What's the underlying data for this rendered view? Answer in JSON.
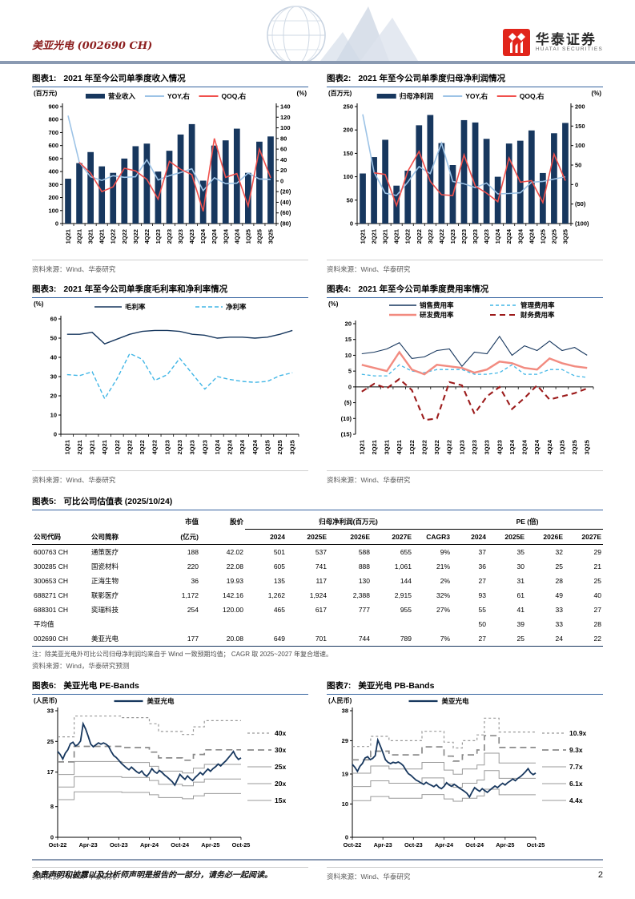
{
  "header": {
    "brand": "美亚光电 (002690 CH)",
    "logo_cn": "华泰证券",
    "logo_en": "HUATAI SECURITIES"
  },
  "footer": {
    "disclaimer": "免责声明和披露以及分析师声明是报告的一部分，请务必一起阅读。",
    "page": "2"
  },
  "colors": {
    "navy": "#17375e",
    "light_blue": "#9dc3e6",
    "red": "#f0504c",
    "cyan": "#41b6e6",
    "salmon": "#f28b80",
    "dark_red": "#9c1b1b",
    "band_gray": "#9a9a9a",
    "rule_slate": "#8a9ab2",
    "title_line": "#35639f",
    "brand_red": "#8c1f1f",
    "logo_red": "#e1251b"
  },
  "figures": {
    "fig1": {
      "label": "图表1:",
      "source": "资料来源：Wind、华泰研究"
    },
    "fig2": {
      "label": "图表2:",
      "source": "资料来源：Wind、华泰研究"
    },
    "fig3": {
      "label": "图表3:",
      "source": "资料来源：Wind、华泰研究"
    },
    "fig4": {
      "label": "图表4:",
      "source": "资料来源：Wind、华泰研究"
    },
    "fig6": {
      "label": "图表6:",
      "source": "资料来源：Wind、华泰研究"
    },
    "fig7": {
      "label": "图表7:",
      "source": "资料来源：Wind、华泰研究"
    }
  },
  "valuation_table": {
    "label": "图表5:",
    "title": "可比公司估值表 (2025/10/24)",
    "group_headers": {
      "mktcap": "市值",
      "price": "股价",
      "profit": "归母净利润(百万元)",
      "pe": "PE (倍)"
    },
    "col_headers": [
      "公司代码",
      "公司简称",
      "(亿元)",
      "",
      "2024",
      "2025E",
      "2026E",
      "2027E",
      "CAGR3",
      "2024",
      "2025E",
      "2026E",
      "2027E"
    ],
    "rows": [
      [
        "600763 CH",
        "通策医疗",
        "188",
        "42.02",
        "501",
        "537",
        "588",
        "655",
        "9%",
        "37",
        "35",
        "32",
        "29"
      ],
      [
        "300285 CH",
        "国瓷材料",
        "220",
        "22.08",
        "605",
        "741",
        "888",
        "1,061",
        "21%",
        "36",
        "30",
        "25",
        "21"
      ],
      [
        "300653 CH",
        "正海生物",
        "36",
        "19.93",
        "135",
        "117",
        "130",
        "144",
        "2%",
        "27",
        "31",
        "28",
        "25"
      ],
      [
        "688271 CH",
        "联影医疗",
        "1,172",
        "142.16",
        "1,262",
        "1,924",
        "2,388",
        "2,915",
        "32%",
        "93",
        "61",
        "49",
        "40"
      ],
      [
        "688301 CH",
        "奕瑞科技",
        "254",
        "120.00",
        "465",
        "617",
        "777",
        "955",
        "27%",
        "55",
        "41",
        "33",
        "27"
      ],
      [
        "平均值",
        "",
        "",
        "",
        "",
        "",
        "",
        "",
        "",
        "50",
        "39",
        "33",
        "28"
      ],
      [
        "002690 CH",
        "美亚光电",
        "177",
        "20.08",
        "649",
        "701",
        "744",
        "789",
        "7%",
        "27",
        "25",
        "24",
        "22"
      ]
    ],
    "note": "注：除美亚光电外可比公司归母净利润均来自于 Wind 一致预期均值； CAGR 取 2025~2027 年复合增速。",
    "source": "资料来源：Wind，华泰研究预测"
  },
  "chart_data": [
    {
      "id": "chart1",
      "type": "bar+line",
      "title": "2021 年至今公司单季度收入情况",
      "unit_left": "(百万元)",
      "unit_right": "(%)",
      "categories": [
        "1Q21",
        "2Q21",
        "3Q21",
        "4Q21",
        "1Q22",
        "2Q22",
        "3Q22",
        "4Q22",
        "1Q23",
        "2Q23",
        "3Q23",
        "4Q23",
        "1Q24",
        "2Q24",
        "3Q24",
        "4Q24",
        "1Q25",
        "2Q25",
        "3Q25"
      ],
      "bar": {
        "name": "营业收入",
        "color": "#17375e",
        "values": [
          345,
          465,
          550,
          440,
          390,
          500,
          595,
          615,
          400,
          560,
          685,
          765,
          330,
          600,
          640,
          730,
          390,
          630,
          670
        ]
      },
      "lines": [
        {
          "name": "YOY,右",
          "color": "#9dc3e6",
          "values": [
            123,
            35,
            8,
            1,
            10,
            7,
            8,
            40,
            2,
            10,
            16,
            23,
            -18,
            6,
            -5,
            -4,
            15,
            4,
            3
          ]
        },
        {
          "name": "QOQ,右",
          "color": "#f0504c",
          "values": [
            null,
            35,
            15,
            -20,
            -11,
            24,
            19,
            3,
            -34,
            37,
            22,
            12,
            -57,
            80,
            7,
            14,
            -47,
            60,
            6
          ]
        }
      ],
      "left_ticks": [
        0,
        100,
        200,
        300,
        400,
        500,
        600,
        700,
        800,
        900
      ],
      "right_ticks": [
        -80,
        -60,
        -40,
        -20,
        0,
        20,
        40,
        60,
        80,
        100,
        120,
        140
      ]
    },
    {
      "id": "chart2",
      "type": "bar+line",
      "title": "2021 年至今公司单季度归母净利润情况",
      "unit_left": "(百万元)",
      "unit_right": "(%)",
      "categories": [
        "1Q21",
        "2Q21",
        "3Q21",
        "4Q21",
        "1Q22",
        "2Q22",
        "3Q22",
        "4Q22",
        "1Q23",
        "2Q23",
        "3Q23",
        "4Q23",
        "1Q24",
        "2Q24",
        "3Q24",
        "4Q24",
        "1Q25",
        "2Q25",
        "3Q25"
      ],
      "bar": {
        "name": "归母净利润",
        "color": "#17375e",
        "values": [
          107,
          142,
          179,
          81,
          113,
          210,
          232,
          172,
          125,
          221,
          216,
          181,
          100,
          171,
          177,
          199,
          108,
          193,
          215
        ]
      },
      "lines": [
        {
          "name": "YOY,右",
          "color": "#9dc3e6",
          "values": [
            180,
            32,
            -22,
            -28,
            6,
            46,
            28,
            106,
            8,
            2,
            -8,
            4,
            -24,
            -23,
            -21,
            6,
            8,
            14,
            20
          ]
        },
        {
          "name": "QOQ,右",
          "color": "#f0504c",
          "values": [
            null,
            30,
            26,
            -54,
            34,
            85,
            8,
            -26,
            -28,
            76,
            -4,
            -22,
            -44,
            68,
            6,
            10,
            -46,
            78,
            10
          ]
        }
      ],
      "left_ticks": [
        0,
        50,
        100,
        150,
        200,
        250
      ],
      "right_ticks": [
        -100,
        -50,
        0,
        50,
        100,
        150,
        200
      ]
    },
    {
      "id": "chart3",
      "type": "line",
      "title": "2021 年至今公司单季度毛利率和净利率情况",
      "unit_left": "(%)",
      "legend_rows": 1,
      "zero_line": false,
      "categories": [
        "1Q21",
        "2Q21",
        "3Q21",
        "4Q21",
        "1Q22",
        "2Q22",
        "3Q22",
        "4Q22",
        "1Q23",
        "2Q23",
        "3Q23",
        "4Q23",
        "1Q24",
        "2Q24",
        "3Q24",
        "4Q24",
        "1Q25",
        "2Q25",
        "3Q25"
      ],
      "series": [
        {
          "name": "毛利率",
          "color": "#17375e",
          "width": 1.4,
          "dash": "",
          "values": [
            52,
            52,
            53,
            47,
            49.5,
            52,
            53.5,
            54,
            54,
            53.5,
            52,
            51.5,
            50,
            50.5,
            50.5,
            50,
            50.5,
            52,
            54
          ]
        },
        {
          "name": "净利率",
          "color": "#41b6e6",
          "width": 1.4,
          "dash": "5,3",
          "values": [
            31,
            30.5,
            32.5,
            18.5,
            29,
            42,
            39,
            28,
            31,
            39.5,
            31.5,
            23.5,
            30,
            28.5,
            27.5,
            27,
            27.5,
            30.5,
            32
          ]
        }
      ],
      "ticks": [
        0,
        10,
        20,
        30,
        40,
        50,
        60
      ]
    },
    {
      "id": "chart4",
      "type": "line",
      "title": "2021 年至今公司单季度费用率情况",
      "unit_left": "(%)",
      "legend_rows": 2,
      "zero_line": true,
      "categories": [
        "1Q21",
        "2Q21",
        "3Q21",
        "4Q21",
        "1Q22",
        "2Q22",
        "3Q22",
        "4Q22",
        "1Q23",
        "2Q23",
        "3Q23",
        "4Q23",
        "1Q24",
        "2Q24",
        "3Q24",
        "4Q24",
        "1Q25",
        "2Q25",
        "3Q25"
      ],
      "series": [
        {
          "name": "销售费用率",
          "color": "#17375e",
          "width": 1.1,
          "dash": "",
          "values": [
            10.5,
            11,
            12,
            14,
            9,
            9.5,
            11.5,
            12,
            6.5,
            11,
            10.5,
            16,
            10,
            13,
            11.5,
            14.5,
            11.5,
            12.5,
            10
          ]
        },
        {
          "name": "管理费用率",
          "color": "#41b6e6",
          "width": 1.3,
          "dash": "4,3",
          "values": [
            4,
            3.5,
            3.5,
            7,
            5,
            4.5,
            5.5,
            5.5,
            5.5,
            4,
            4,
            4.5,
            7,
            4,
            4,
            5.5,
            5.5,
            3.5,
            3
          ]
        },
        {
          "name": "研发费用率",
          "color": "#f28b80",
          "width": 2.4,
          "dash": "",
          "values": [
            7,
            6,
            5,
            11,
            5.5,
            4,
            7,
            6.5,
            6,
            4.5,
            5.5,
            8,
            7.5,
            6,
            5.5,
            9,
            7.5,
            6.5,
            6
          ]
        },
        {
          "name": "财务费用率",
          "color": "#9c1b1b",
          "width": 2.1,
          "dash": "7,5",
          "values": [
            -1.5,
            1,
            -0.5,
            2.5,
            -1,
            -10.5,
            -10,
            1.5,
            0.5,
            -8.5,
            -3,
            0,
            -7,
            -3.5,
            0.5,
            -4,
            -3,
            -2,
            -0.5
          ]
        }
      ],
      "ticks": [
        -15,
        -10,
        -5,
        0,
        5,
        10,
        15,
        20
      ]
    },
    {
      "id": "chart6",
      "type": "band",
      "title": "美亚光电 PE-Bands",
      "unit": "(人民币)",
      "price_name": "美亚光电",
      "y_ticks": [
        0,
        8,
        17,
        25,
        33
      ],
      "ymax": 33,
      "x_labels": [
        "Oct-22",
        "Apr-23",
        "Oct-23",
        "Apr-24",
        "Oct-24",
        "Apr-25",
        "Oct-25"
      ],
      "multipliers": [
        {
          "m": 40,
          "label": "40x"
        },
        {
          "m": 30,
          "label": "30x"
        },
        {
          "m": 25,
          "label": "25x"
        },
        {
          "m": 20,
          "label": "20x"
        },
        {
          "m": 15,
          "label": "15x"
        }
      ],
      "base_steps": [
        [
          0,
          0.655
        ],
        [
          0.09,
          0.79
        ],
        [
          0.35,
          0.78
        ],
        [
          0.5,
          0.74
        ],
        [
          0.55,
          0.69
        ],
        [
          0.68,
          0.67
        ],
        [
          0.74,
          0.72
        ],
        [
          0.8,
          0.76
        ]
      ],
      "price": [
        22.4,
        21.6,
        20.4,
        21.9,
        22.8,
        24.4,
        24.8,
        23.8,
        24.2,
        25.1,
        29.6,
        28.2,
        26.3,
        24.3,
        23.6,
        24.1,
        24.6,
        24.3,
        24.6,
        24.3,
        23.7,
        22.4,
        21.3,
        20.8,
        20.1,
        19.3,
        18.7,
        18.1,
        17.6,
        18.3,
        17.7,
        17.1,
        16.7,
        17.3,
        16.4,
        15.9,
        16.7,
        17.9,
        17.1,
        16.7,
        17.4,
        16.9,
        16.2,
        15.7,
        15.1,
        14.5,
        13.6,
        15.0,
        16.4,
        15.7,
        15.1,
        16.0,
        15.3,
        14.8,
        15.6,
        16.2,
        16.9,
        16.3,
        17.1,
        17.8,
        17.2,
        17.9,
        18.4,
        19.1,
        18.6,
        19.3,
        19.9,
        20.7,
        21.5,
        22.4,
        21.1,
        20.3,
        20.7
      ]
    },
    {
      "id": "chart7",
      "type": "band",
      "title": "美亚光电 PB-Bands",
      "unit": "(人民币)",
      "price_name": "美亚光电",
      "y_ticks": [
        0,
        10,
        19,
        29,
        38
      ],
      "ymax": 38,
      "x_labels": [
        "Oct-22",
        "Apr-23",
        "Oct-23",
        "Apr-24",
        "Oct-24",
        "Apr-25",
        "Oct-25"
      ],
      "multipliers": [
        {
          "m": 10.9,
          "label": "10.9x"
        },
        {
          "m": 9.3,
          "label": "9.3x"
        },
        {
          "m": 7.7,
          "label": "7.7x"
        },
        {
          "m": 6.1,
          "label": "6.1x"
        },
        {
          "m": 4.4,
          "label": "4.4x"
        }
      ],
      "base_steps": [
        [
          0,
          2.5
        ],
        [
          0.1,
          2.78
        ],
        [
          0.2,
          2.66
        ],
        [
          0.38,
          2.92
        ],
        [
          0.5,
          2.62
        ],
        [
          0.55,
          2.46
        ],
        [
          0.6,
          2.66
        ],
        [
          0.68,
          2.82
        ],
        [
          0.72,
          3.28
        ],
        [
          0.8,
          2.9
        ]
      ],
      "price": [
        21.9,
        21.0,
        19.8,
        21.3,
        22.2,
        23.8,
        24.2,
        23.3,
        23.7,
        24.5,
        29.2,
        27.4,
        25.4,
        23.3,
        22.5,
        22.1,
        22.5,
        22.3,
        22.6,
        22.2,
        21.5,
        20.2,
        19.1,
        18.6,
        17.9,
        17.2,
        16.8,
        16.3,
        15.9,
        16.5,
        16.0,
        15.6,
        15.2,
        15.8,
        15.0,
        14.6,
        15.3,
        16.4,
        15.7,
        15.3,
        15.9,
        15.4,
        14.8,
        14.3,
        13.8,
        13.2,
        12.1,
        13.6,
        14.9,
        14.3,
        13.8,
        14.6,
        14.0,
        13.5,
        14.2,
        14.8,
        15.4,
        14.9,
        15.6,
        16.2,
        15.7,
        16.4,
        16.9,
        17.5,
        17.0,
        17.7,
        18.2,
        18.9,
        19.7,
        20.6,
        19.4,
        18.8,
        19.3
      ]
    }
  ]
}
